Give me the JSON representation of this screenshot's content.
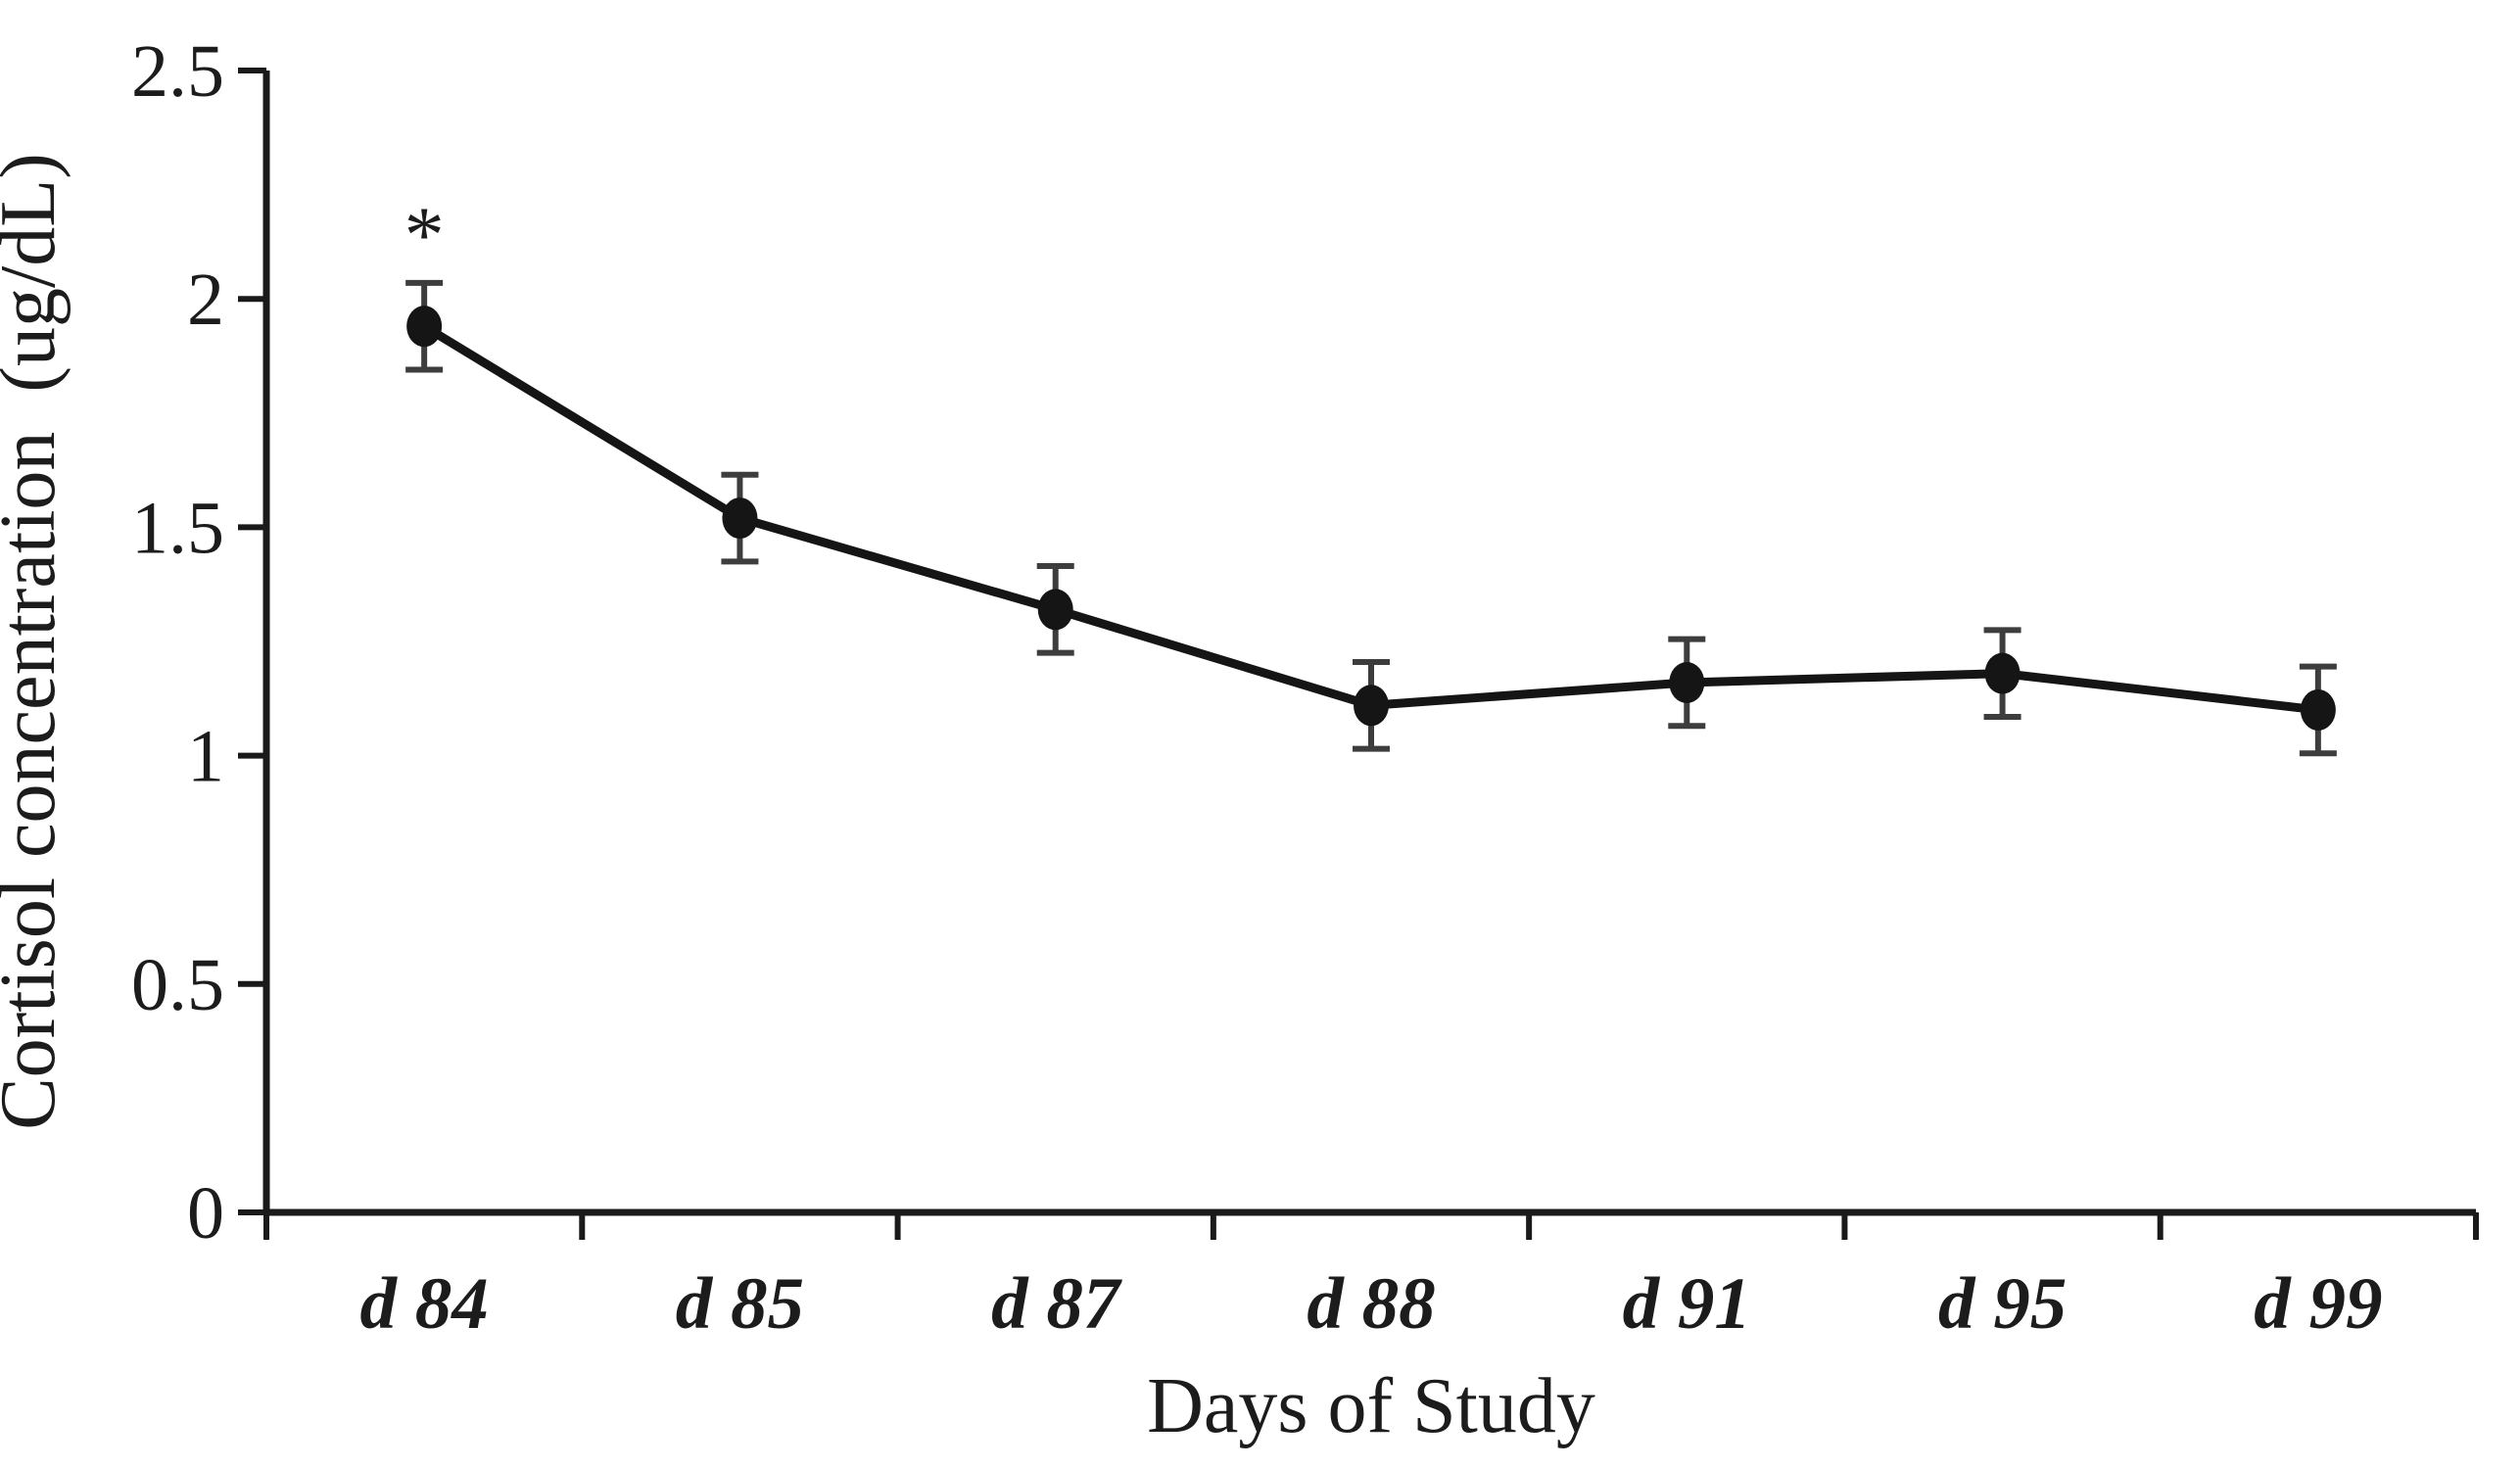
{
  "chart_data": {
    "type": "line",
    "categories": [
      "d 84",
      "d 85",
      "d 87",
      "d 88",
      "d 91",
      "d 95",
      "d 99"
    ],
    "series": [
      {
        "name": "Cortisol",
        "values": [
          1.94,
          1.52,
          1.32,
          1.11,
          1.16,
          1.18,
          1.1
        ],
        "error_bars": [
          0.095,
          0.095,
          0.095,
          0.095,
          0.095,
          0.095,
          0.095
        ]
      }
    ],
    "title": "",
    "xlabel": "Days of Study",
    "ylabel": "Cortisol concentration  (ug/dL)",
    "ylim": [
      0,
      2.5
    ],
    "y_ticks": [
      0,
      0.5,
      1,
      1.5,
      2,
      2.5
    ],
    "y_tick_labels": [
      "0",
      "0.5",
      "1",
      "1.5",
      "2",
      "2.5"
    ],
    "annotations": [
      {
        "text": "*",
        "category": "d 84"
      }
    ],
    "grid": false,
    "legend": false,
    "marker": "circle",
    "line_color": "#151515",
    "error_bar_color": "#3d3d3d",
    "text_color": "#1c1c1c"
  }
}
